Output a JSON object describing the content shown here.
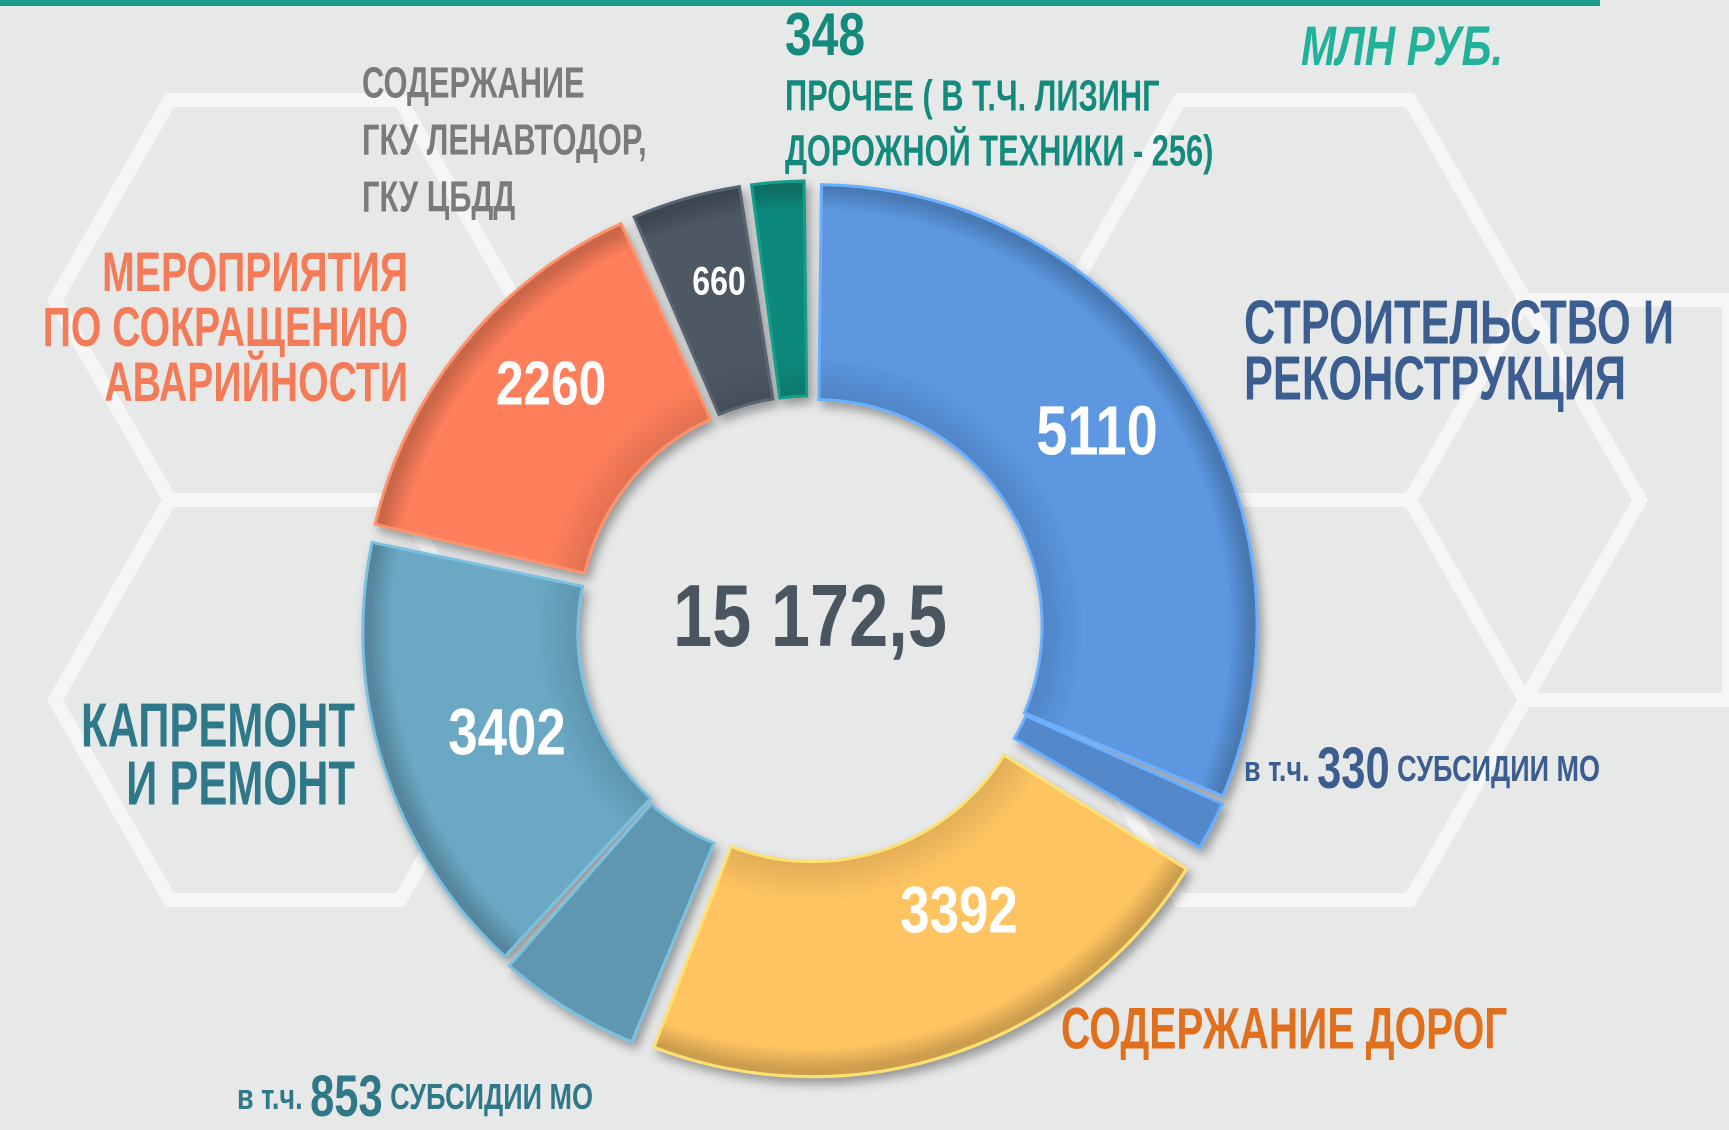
{
  "chart_data": {
    "type": "donut",
    "unit": "МЛН РУБ.",
    "total": 15172.5,
    "total_label": "15 172,5",
    "slices": [
      {
        "name": [
          "СТРОИТЕЛЬСТВО И",
          "РЕКОНСТРУКЦИЯ"
        ],
        "value": 5110,
        "color": "#5b97e0",
        "label_color": "#3b5d8f",
        "sub": {
          "prefix": "в т.ч.",
          "value": 330,
          "suffix": "СУБСИДИИ МО",
          "position": "end"
        }
      },
      {
        "name": [
          "СОДЕРЖАНИЕ ДОРОГ"
        ],
        "value": 3392,
        "color": "#ffc462",
        "label_color": "#e0701e"
      },
      {
        "name": [
          "КАПРЕМОНТ",
          "И РЕМОНТ"
        ],
        "value": 3402,
        "color": "#6aa8c4",
        "label_color": "#2e7889",
        "sub": {
          "prefix": "в т.ч.",
          "value": 853,
          "suffix": "СУБСИДИИ МО",
          "position": "start"
        }
      },
      {
        "name": [
          "МЕРОПРИЯТИЯ",
          "ПО СОКРАЩЕНИЮ",
          "АВАРИЙНОСТИ"
        ],
        "value": 2260,
        "color": "#ff7f5c",
        "label_color": "#f47b58"
      },
      {
        "name": [
          "СОДЕРЖАНИЕ",
          "ГКУ ЛЕНАВТОДОР,",
          "ГКУ ЦБДД"
        ],
        "value": 660,
        "color": "#4d5864",
        "label_color": "#7a7a7a"
      },
      {
        "name": [
          "ПРОЧЕЕ ( В Т.Ч. ЛИЗИНГ",
          "ДОРОЖНОЙ ТЕХНИКИ  - 256)"
        ],
        "value": 348,
        "color": "#11897b",
        "label_color": "#138a7c"
      }
    ]
  }
}
